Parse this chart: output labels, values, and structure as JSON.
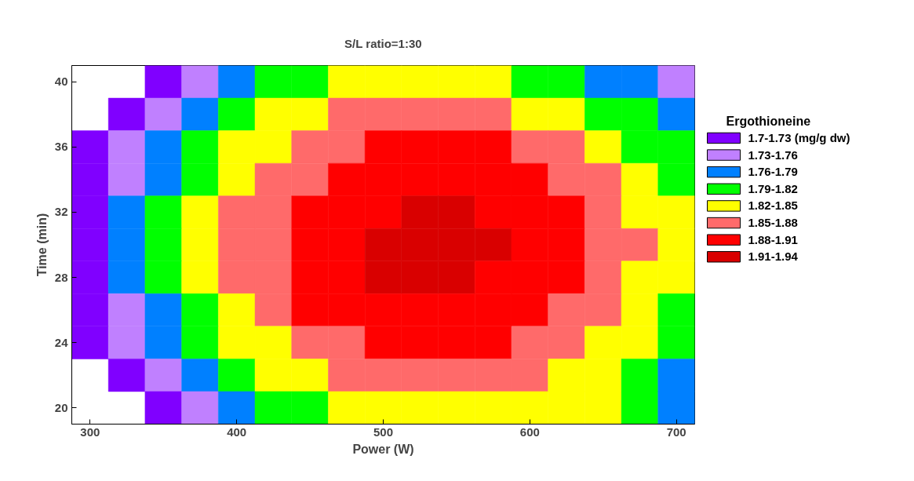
{
  "chart_data": {
    "type": "heatmap",
    "title": "S/L ratio=1:30",
    "xlabel": "Power (W)",
    "ylabel": "Time (min)",
    "clabel": "Ergothioneine",
    "x": [
      300,
      325,
      350,
      375,
      400,
      425,
      450,
      475,
      500,
      525,
      550,
      575,
      600,
      625,
      650,
      675,
      700
    ],
    "y": [
      40,
      38,
      36,
      34,
      32,
      30,
      28,
      26,
      24,
      22,
      20
    ],
    "cells": [
      [
        null,
        null,
        1.715,
        1.745,
        1.775,
        1.805,
        1.805,
        1.835,
        1.835,
        1.835,
        1.835,
        1.835,
        1.805,
        1.805,
        1.775,
        1.775,
        1.745
      ],
      [
        null,
        1.715,
        1.745,
        1.775,
        1.805,
        1.835,
        1.835,
        1.865,
        1.865,
        1.865,
        1.865,
        1.865,
        1.835,
        1.835,
        1.805,
        1.805,
        1.775
      ],
      [
        1.715,
        1.745,
        1.775,
        1.805,
        1.835,
        1.835,
        1.865,
        1.865,
        1.895,
        1.895,
        1.895,
        1.895,
        1.865,
        1.865,
        1.835,
        1.805,
        1.805
      ],
      [
        1.715,
        1.745,
        1.775,
        1.805,
        1.835,
        1.865,
        1.865,
        1.895,
        1.895,
        1.895,
        1.895,
        1.895,
        1.895,
        1.865,
        1.865,
        1.835,
        1.805
      ],
      [
        1.715,
        1.775,
        1.805,
        1.835,
        1.865,
        1.865,
        1.895,
        1.895,
        1.895,
        1.925,
        1.925,
        1.895,
        1.895,
        1.895,
        1.865,
        1.835,
        1.835
      ],
      [
        1.715,
        1.775,
        1.805,
        1.835,
        1.865,
        1.865,
        1.895,
        1.895,
        1.925,
        1.925,
        1.925,
        1.925,
        1.895,
        1.895,
        1.865,
        1.865,
        1.835
      ],
      [
        1.715,
        1.775,
        1.805,
        1.835,
        1.865,
        1.865,
        1.895,
        1.895,
        1.925,
        1.925,
        1.925,
        1.895,
        1.895,
        1.895,
        1.865,
        1.835,
        1.835
      ],
      [
        1.715,
        1.745,
        1.775,
        1.805,
        1.835,
        1.865,
        1.895,
        1.895,
        1.895,
        1.895,
        1.895,
        1.895,
        1.895,
        1.865,
        1.865,
        1.835,
        1.805
      ],
      [
        1.715,
        1.745,
        1.775,
        1.805,
        1.835,
        1.835,
        1.865,
        1.865,
        1.895,
        1.895,
        1.895,
        1.895,
        1.865,
        1.865,
        1.835,
        1.835,
        1.805
      ],
      [
        null,
        1.715,
        1.745,
        1.775,
        1.805,
        1.835,
        1.835,
        1.865,
        1.865,
        1.865,
        1.865,
        1.865,
        1.865,
        1.835,
        1.835,
        1.805,
        1.775
      ],
      [
        null,
        null,
        1.715,
        1.745,
        1.775,
        1.805,
        1.805,
        1.835,
        1.835,
        1.835,
        1.835,
        1.835,
        1.835,
        1.835,
        1.835,
        1.805,
        1.775
      ]
    ],
    "colors": [
      "#8000ff",
      "#c080ff",
      "#0080ff",
      "#00ff00",
      "#ffff00",
      "#ff6a6a",
      "#ff0000",
      "#d90000"
    ],
    "clim": [
      1.7,
      1.94
    ],
    "cticks": [
      {
        "value": 1.715,
        "label": "1.7-1.73 (mg/g dw)"
      },
      {
        "value": 1.745,
        "label": "1.73-1.76"
      },
      {
        "value": 1.775,
        "label": "1.76-1.79"
      },
      {
        "value": 1.805,
        "label": "1.79-1.82"
      },
      {
        "value": 1.835,
        "label": "1.82-1.85"
      },
      {
        "value": 1.865,
        "label": "1.85-1.88"
      },
      {
        "value": 1.895,
        "label": "1.88-1.91"
      },
      {
        "value": 1.925,
        "label": "1.91-1.94"
      }
    ],
    "xlim": [
      287.5,
      712.5
    ],
    "ylim": [
      19,
      41
    ],
    "xticks": [
      300,
      400,
      500,
      600,
      700
    ],
    "yticks": [
      20,
      24,
      28,
      32,
      36,
      40
    ],
    "grid": false
  }
}
